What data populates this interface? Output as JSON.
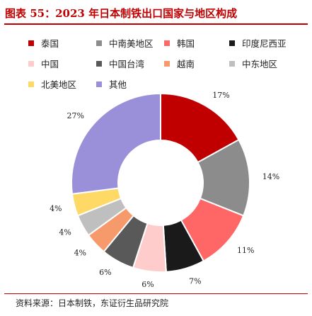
{
  "title": "图表 55：2023 年日本制铁出口国家与地区构成",
  "source": "资料来源：日本制铁，东证衍生品研究院",
  "colors": {
    "title": "#c00000",
    "rule": "#c00000"
  },
  "chart_data": {
    "type": "pie",
    "variant": "donut",
    "unit": "%",
    "legend_position": "top",
    "categories": [
      "泰国",
      "中南美地区",
      "韩国",
      "印度尼西亚",
      "中国",
      "中国台湾",
      "越南",
      "中东地区",
      "北美地区",
      "其他"
    ],
    "values": [
      17,
      14,
      11,
      7,
      6,
      6,
      4,
      4,
      4,
      27
    ],
    "labels": [
      "17%",
      "14%",
      "11%",
      "7%",
      "6%",
      "6%",
      "4%",
      "4%",
      "4%",
      "27%"
    ],
    "colors": [
      "#c00000",
      "#8c8c8c",
      "#ff6666",
      "#1a1a1a",
      "#ffcccc",
      "#595959",
      "#f79a6b",
      "#bfbfbf",
      "#ffd966",
      "#9a8fd9"
    ]
  }
}
